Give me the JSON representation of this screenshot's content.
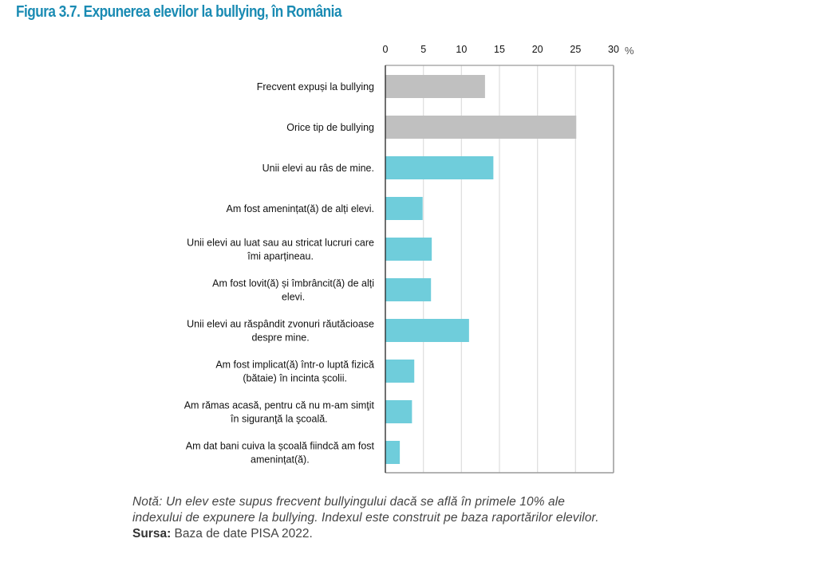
{
  "figure": {
    "title": "Figura 3.7. Expunerea elevilor la bullying, în România",
    "note_line1": "Notă: Un elev este supus frecvent bullyingului dacă se află în primele 10% ale",
    "note_line2": "indexului de expunere la bullying. Indexul este construit pe baza raportărilor elevilor.",
    "source_label": "Sursa:",
    "source_text": " Baza de date PISA 2022."
  },
  "colors": {
    "title": "#1a8bb3",
    "summary_bar": "#c0c0c0",
    "item_bar": "#6fcddb",
    "gridline": "#e0e0e0",
    "frame": "#9a9a9a",
    "axis": "#222222"
  },
  "chart_data": {
    "type": "bar",
    "orientation": "horizontal",
    "title": "Figura 3.7. Expunerea elevilor la bullying, în România",
    "xlabel": "%",
    "ylabel": "",
    "xlim": [
      0,
      30
    ],
    "xticks": [
      0,
      5,
      10,
      15,
      20,
      25,
      30
    ],
    "tick_labels": [
      "0",
      "5",
      "10",
      "15",
      "20",
      "25",
      "30"
    ],
    "axis_position": "top",
    "grid": true,
    "legend": "none",
    "categories": [
      [
        "Frecvent expuși la bullying"
      ],
      [
        "Orice tip de bullying"
      ],
      [
        "Unii elevi au râs de mine."
      ],
      [
        "Am fost amenințat(ă) de alți elevi."
      ],
      [
        "Unii elevi au luat sau au stricat lucruri care",
        "îmi aparțineau."
      ],
      [
        "Am fost lovit(ă) și îmbrâncit(ă) de alți",
        "elevi."
      ],
      [
        "Unii elevi au răspândit zvonuri răutăcioase",
        "despre mine."
      ],
      [
        "Am fost implicat(ă) într-o luptă fizică",
        "(bătaie) în incinta școlii."
      ],
      [
        "Am rămas acasă, pentru că nu m-am simţit",
        "în siguranţă la şcoală."
      ],
      [
        "Am dat bani cuiva la școală fiindcă am fost",
        "amenințat(ă)."
      ]
    ],
    "values": [
      13.1,
      25.1,
      14.2,
      4.9,
      6.1,
      6.0,
      11.0,
      3.8,
      3.5,
      1.9
    ],
    "bar_groups": [
      "summary",
      "summary",
      "item",
      "item",
      "item",
      "item",
      "item",
      "item",
      "item",
      "item"
    ]
  }
}
